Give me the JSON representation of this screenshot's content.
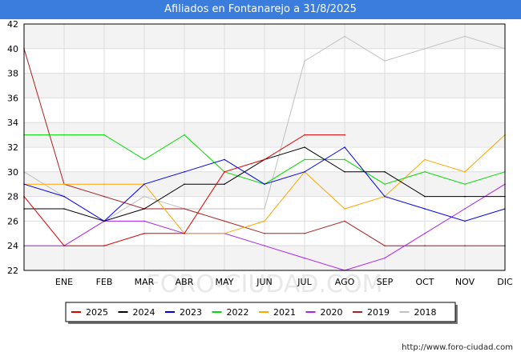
{
  "title": "Afiliados en Fontanarejo a 31/8/2025",
  "watermark": "FORO-CIUDAD.COM",
  "source_url": "http://www.foro-ciudad.com",
  "chart_data": {
    "type": "line",
    "title": "Afiliados en Fontanarejo a 31/8/2025",
    "xlabel": "",
    "ylabel": "",
    "x": [
      "",
      "ENE",
      "FEB",
      "MAR",
      "ABR",
      "MAY",
      "JUN",
      "JUL",
      "AGO",
      "SEP",
      "OCT",
      "NOV",
      "DIC"
    ],
    "ylim": [
      22,
      42
    ],
    "yticks": [
      22,
      24,
      26,
      28,
      30,
      32,
      34,
      36,
      38,
      40,
      42
    ],
    "grid": true,
    "legend_position": "bottom",
    "series": [
      {
        "name": "2025",
        "color": "#dd0000",
        "values": [
          28,
          24,
          24,
          25,
          25,
          30,
          31,
          33,
          33,
          null,
          null,
          null,
          null
        ]
      },
      {
        "name": "2024",
        "color": "#000000",
        "values": [
          27,
          27,
          26,
          27,
          29,
          29,
          31,
          32,
          30,
          30,
          28,
          28,
          28
        ]
      },
      {
        "name": "2023",
        "color": "#0000ee",
        "values": [
          29,
          28,
          26,
          29,
          30,
          31,
          29,
          30,
          32,
          28,
          27,
          26,
          27
        ]
      },
      {
        "name": "2022",
        "color": "#00dd00",
        "values": [
          33,
          33,
          33,
          31,
          33,
          30,
          29,
          31,
          31,
          29,
          30,
          29,
          30
        ]
      },
      {
        "name": "2021",
        "color": "#ffa500",
        "values": [
          29,
          29,
          29,
          29,
          25,
          25,
          26,
          30,
          27,
          28,
          31,
          30,
          33
        ]
      },
      {
        "name": "2020",
        "color": "#aa22ee",
        "values": [
          24,
          24,
          26,
          26,
          25,
          25,
          24,
          23,
          22,
          23,
          25,
          27,
          29
        ]
      },
      {
        "name": "2019",
        "color": "#aa2222",
        "values": [
          40,
          29,
          28,
          27,
          27,
          26,
          25,
          25,
          26,
          24,
          24,
          24,
          24
        ]
      },
      {
        "name": "2018",
        "color": "#c0c0c0",
        "values": [
          30,
          28,
          26,
          28,
          27,
          27,
          27,
          39,
          41,
          39,
          40,
          41,
          40
        ]
      }
    ]
  }
}
